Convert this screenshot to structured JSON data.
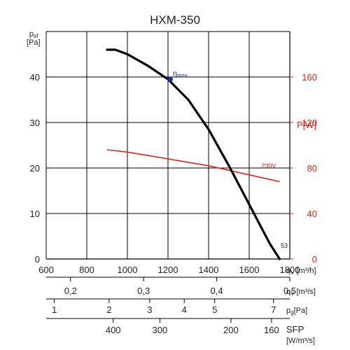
{
  "title": "HXM-350",
  "colors": {
    "fan_curve": "#000000",
    "power_curve": "#e2231a",
    "eta_marker": "#1f2a8a",
    "grid": "#000000",
    "power_axis": "#e2231a"
  },
  "left_axis": {
    "label_main": "p",
    "label_sub": "sf",
    "unit": "[Pa]",
    "ticks": [
      "0",
      "10",
      "20",
      "30",
      "40"
    ]
  },
  "right_axis": {
    "label": "P[W]",
    "ticks": [
      "0",
      "40",
      "80",
      "120",
      "160"
    ]
  },
  "x_axis": {
    "label_main": "q",
    "label_sub": "V",
    "unit": "[m³/h]",
    "ticks": [
      "600",
      "800",
      "1000",
      "1200",
      "1400",
      "1600",
      "1800"
    ]
  },
  "scales": [
    {
      "label_main": "q",
      "label_sub": "V",
      "unit": "[m³/s]",
      "ticks": [
        {
          "label": "0,2",
          "q": 720
        },
        {
          "label": "0,3",
          "q": 1080
        },
        {
          "label": "0,4",
          "q": 1440
        },
        {
          "label": "0,5",
          "q": 1800
        }
      ]
    },
    {
      "label_main": "p",
      "label_sub": "g",
      "unit": "[Pa]",
      "ticks": [
        {
          "label": "1",
          "q": 640
        },
        {
          "label": "2",
          "q": 910
        },
        {
          "label": "3",
          "q": 1110
        },
        {
          "label": "4",
          "q": 1280
        },
        {
          "label": "5",
          "q": 1430
        },
        {
          "label": "7",
          "q": 1720
        }
      ]
    },
    {
      "label_main": "SFP",
      "unit": "[W/m³/s]",
      "ticks": [
        {
          "label": "400",
          "q": 930
        },
        {
          "label": "300",
          "q": 1160
        },
        {
          "label": "200",
          "q": 1510
        },
        {
          "label": "160",
          "q": 1710
        }
      ]
    }
  ],
  "annotations": {
    "eta": "η",
    "eta_sub": "max",
    "voltage": "230V",
    "curve_end": "53"
  },
  "chart_data": {
    "type": "line",
    "title": "HXM-350",
    "xlim": [
      600,
      1800
    ],
    "ylim": [
      0,
      50
    ],
    "y2lim": [
      0,
      200
    ],
    "grid": true,
    "series": [
      {
        "name": "",
        "axis": "left",
        "points": [
          [
            900,
            46
          ],
          [
            940,
            46
          ],
          [
            1000,
            45
          ],
          [
            1100,
            42.5
          ],
          [
            1200,
            39.5
          ],
          [
            1300,
            35
          ],
          [
            1400,
            28.5
          ],
          [
            1500,
            20.5
          ],
          [
            1600,
            12
          ],
          [
            1700,
            3.5
          ],
          [
            1750,
            0
          ]
        ]
      },
      {
        "name": "230V",
        "axis": "right",
        "points": [
          [
            900,
            96
          ],
          [
            1000,
            94
          ],
          [
            1100,
            91
          ],
          [
            1200,
            88
          ],
          [
            1300,
            85
          ],
          [
            1400,
            82
          ],
          [
            1500,
            78
          ],
          [
            1600,
            74
          ],
          [
            1700,
            70
          ],
          [
            1750,
            68
          ]
        ]
      }
    ],
    "marker": {
      "label": "ηmax",
      "x": 1210,
      "y": 39.5
    }
  }
}
